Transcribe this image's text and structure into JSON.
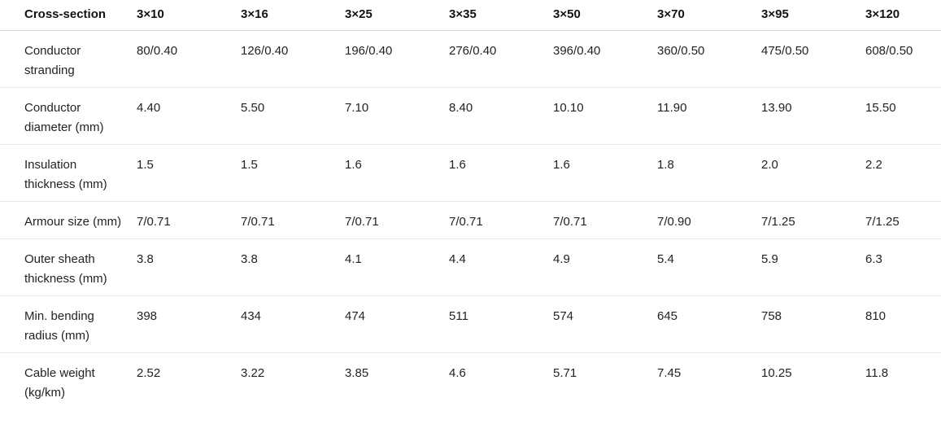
{
  "table": {
    "header": [
      "Cross-section",
      "3×10",
      "3×16",
      "3×25",
      "3×35",
      "3×50",
      "3×70",
      "3×95",
      "3×120"
    ],
    "rows": [
      {
        "label": "Conductor stranding",
        "values": [
          "80/0.40",
          "126/0.40",
          "196/0.40",
          "276/0.40",
          "396/0.40",
          "360/0.50",
          "475/0.50",
          "608/0.50"
        ]
      },
      {
        "label": "Conductor diameter (mm)",
        "values": [
          "4.40",
          "5.50",
          "7.10",
          "8.40",
          "10.10",
          "11.90",
          "13.90",
          "15.50"
        ]
      },
      {
        "label": "Insulation thickness (mm)",
        "values": [
          "1.5",
          "1.5",
          "1.6",
          "1.6",
          "1.6",
          "1.8",
          "2.0",
          "2.2"
        ]
      },
      {
        "label": "Armour size (mm)",
        "values": [
          "7/0.71",
          "7/0.71",
          "7/0.71",
          "7/0.71",
          "7/0.71",
          "7/0.90",
          "7/1.25",
          "7/1.25"
        ]
      },
      {
        "label": "Outer sheath thickness (mm)",
        "values": [
          "3.8",
          "3.8",
          "4.1",
          "4.4",
          "4.9",
          "5.4",
          "5.9",
          "6.3"
        ]
      },
      {
        "label": "Min. bending radius (mm)",
        "values": [
          "398",
          "434",
          "474",
          "511",
          "574",
          "645",
          "758",
          "810"
        ]
      },
      {
        "label": "Cable weight (kg/km)",
        "values": [
          "2.52",
          "3.22",
          "3.85",
          "4.6",
          "5.71",
          "7.45",
          "10.25",
          "11.8"
        ]
      }
    ],
    "colors": {
      "background": "#ffffff",
      "header_text": "#111111",
      "body_text": "#232323",
      "header_border": "#d6d6d6",
      "row_border": "#e8e8e8"
    }
  }
}
